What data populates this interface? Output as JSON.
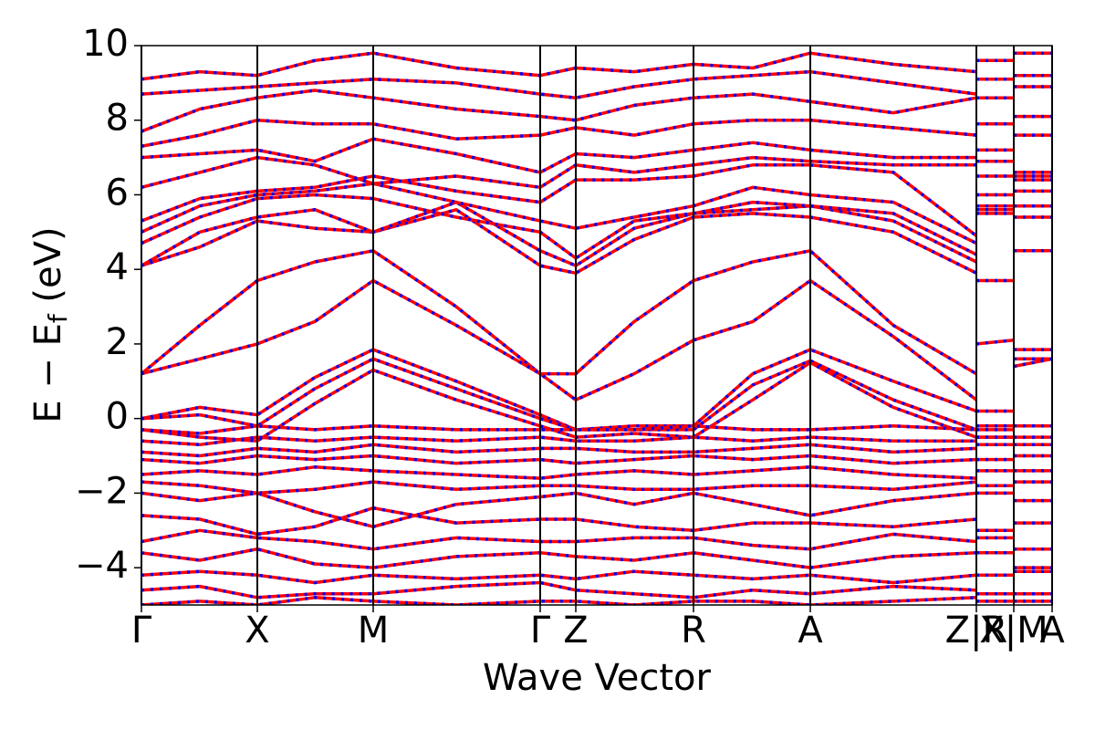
{
  "chart_data": {
    "type": "line",
    "xlabel": "Wave Vector",
    "ylabel": [
      "E − E",
      "f",
      " (eV)"
    ],
    "line_color": "#ff0000",
    "dash_color": "#0000ff",
    "xlim": [
      0,
      9.98
    ],
    "ylim": [
      -5,
      10
    ],
    "yticks": [
      {
        "value": -4,
        "label": "−4"
      },
      {
        "value": -2,
        "label": "−2"
      },
      0,
      2,
      4,
      6,
      8,
      10
    ],
    "xticks": [
      {
        "value": 0,
        "label": "Γ"
      },
      {
        "value": 1.27,
        "label": "X"
      },
      {
        "value": 2.54,
        "label": "M"
      },
      {
        "value": 4.37,
        "label": "Γ"
      },
      {
        "value": 4.76,
        "label": "Z"
      },
      {
        "value": 6.05,
        "label": "R"
      },
      {
        "value": 7.33,
        "label": "A"
      },
      {
        "value": 9.15,
        "label": "Z|R"
      },
      {
        "value": 9.56,
        "label": "X|M"
      },
      {
        "value": 9.98,
        "label": "A"
      }
    ],
    "x": [
      0,
      0.64,
      1.27,
      1.9,
      2.54,
      3.45,
      4.37,
      4.76,
      5.4,
      6.05,
      6.7,
      7.33,
      8.24,
      9.15,
      9.15,
      9.15,
      9.56,
      9.56,
      9.56,
      9.98
    ],
    "series": [
      {
        "values": [
          4.1,
          4.6,
          5.3,
          5.1,
          5.0,
          5.6,
          4.1,
          3.9,
          4.8,
          5.4,
          5.5,
          5.4,
          5.0,
          3.9,
          null,
          5.6,
          5.6,
          null,
          5.4,
          5.4
        ]
      },
      {
        "values": [
          4.1,
          5.0,
          5.4,
          5.6,
          5.0,
          5.8,
          4.5,
          4.1,
          5.1,
          5.5,
          5.6,
          5.7,
          5.3,
          4.2,
          null,
          5.5,
          5.5,
          null,
          5.7,
          5.7
        ]
      },
      {
        "values": [
          4.7,
          5.4,
          5.9,
          6.0,
          5.9,
          5.4,
          5.0,
          4.3,
          5.3,
          5.5,
          5.8,
          5.7,
          5.5,
          4.4,
          null,
          5.7,
          5.7,
          null,
          6.1,
          6.1
        ]
      },
      {
        "values": [
          5.0,
          5.7,
          6.0,
          6.1,
          6.3,
          5.8,
          5.3,
          5.1,
          5.4,
          5.7,
          6.2,
          6.0,
          5.8,
          4.7,
          null,
          6.0,
          6.0,
          null,
          6.4,
          6.4
        ]
      },
      {
        "values": [
          5.3,
          5.9,
          6.1,
          6.2,
          6.5,
          6.1,
          5.8,
          6.4,
          6.4,
          6.5,
          6.8,
          6.8,
          6.6,
          4.9,
          null,
          6.5,
          6.5,
          null,
          6.6,
          6.6
        ]
      },
      {
        "values": [
          6.2,
          6.6,
          7.0,
          6.8,
          6.3,
          6.5,
          6.2,
          6.8,
          6.6,
          6.8,
          7.0,
          6.9,
          6.8,
          6.8,
          null,
          6.9,
          6.9,
          null,
          6.5,
          6.5
        ]
      },
      {
        "values": [
          7.0,
          7.1,
          7.2,
          6.9,
          7.5,
          7.1,
          6.6,
          7.1,
          7.0,
          7.2,
          7.4,
          7.2,
          7.0,
          7.0,
          null,
          7.2,
          7.2,
          null,
          7.6,
          7.6
        ]
      },
      {
        "values": [
          7.3,
          7.6,
          8.0,
          7.9,
          7.9,
          7.5,
          7.6,
          7.8,
          7.6,
          7.9,
          8.0,
          8.0,
          7.8,
          7.6,
          null,
          7.9,
          7.9,
          null,
          8.1,
          8.1
        ]
      },
      {
        "values": [
          7.7,
          8.3,
          8.6,
          8.8,
          8.6,
          8.3,
          8.1,
          8.0,
          8.4,
          8.6,
          8.7,
          8.5,
          8.2,
          8.6,
          null,
          8.6,
          8.6,
          null,
          8.9,
          8.9
        ]
      },
      {
        "values": [
          8.7,
          8.8,
          8.9,
          9.0,
          9.1,
          9.0,
          8.7,
          8.6,
          8.9,
          9.1,
          9.2,
          9.3,
          9.0,
          8.7,
          null,
          9.1,
          9.1,
          null,
          9.2,
          9.2
        ]
      },
      {
        "values": [
          9.1,
          9.3,
          9.2,
          9.6,
          9.8,
          9.4,
          9.2,
          9.4,
          9.3,
          9.5,
          9.4,
          9.8,
          9.5,
          9.3,
          null,
          9.6,
          9.6,
          null,
          9.8,
          9.8
        ]
      },
      {
        "values": [
          1.2,
          2.5,
          3.7,
          4.2,
          4.5,
          3.0,
          1.2,
          1.2,
          2.6,
          3.7,
          4.2,
          4.5,
          2.5,
          1.2,
          null,
          3.7,
          3.7,
          null,
          4.5,
          4.5
        ]
      },
      {
        "values": [
          1.2,
          1.6,
          2.0,
          2.6,
          3.7,
          2.5,
          1.2,
          0.5,
          1.2,
          2.1,
          2.6,
          3.7,
          2.2,
          0.5,
          null,
          2.0,
          2.1,
          null,
          1.6,
          1.6
        ]
      },
      {
        "values": [
          0.0,
          0.3,
          0.1,
          1.1,
          1.85,
          1.0,
          0.1,
          -0.3,
          -0.2,
          -0.2,
          1.2,
          1.85,
          1.0,
          0.2,
          null,
          0.2,
          0.2,
          null,
          1.85,
          1.85
        ]
      },
      {
        "values": [
          0.0,
          0.1,
          -0.2,
          0.8,
          1.6,
          0.8,
          0.0,
          -0.3,
          -0.3,
          -0.3,
          0.9,
          1.55,
          0.5,
          -0.3,
          null,
          -0.2,
          -0.2,
          null,
          1.4,
          1.6
        ]
      },
      {
        "values": [
          -0.3,
          -0.5,
          -0.6,
          0.4,
          1.3,
          0.5,
          -0.2,
          -0.5,
          -0.4,
          -0.5,
          0.5,
          1.5,
          0.3,
          -0.5,
          null,
          -0.5,
          -0.5,
          null,
          -0.2,
          -0.2
        ]
      },
      {
        "values": [
          -0.3,
          -0.4,
          -0.2,
          -0.3,
          -0.2,
          -0.3,
          -0.3,
          -0.3,
          -0.3,
          -0.2,
          -0.3,
          -0.3,
          -0.2,
          -0.3,
          null,
          -0.3,
          -0.3,
          null,
          -0.2,
          -0.2
        ]
      },
      {
        "values": [
          -0.6,
          -0.7,
          -0.5,
          -0.6,
          -0.5,
          -0.6,
          -0.5,
          -0.6,
          -0.6,
          -0.5,
          -0.6,
          -0.5,
          -0.6,
          -0.6,
          null,
          -0.5,
          -0.5,
          null,
          -0.5,
          -0.5
        ]
      },
      {
        "values": [
          -0.9,
          -1.0,
          -0.8,
          -0.9,
          -0.7,
          -0.9,
          -0.8,
          -0.8,
          -0.9,
          -0.9,
          -0.8,
          -0.7,
          -0.9,
          -0.8,
          null,
          -0.7,
          -0.7,
          null,
          -0.7,
          -0.7
        ]
      },
      {
        "values": [
          -1.1,
          -1.2,
          -1.0,
          -1.1,
          -1.0,
          -1.2,
          -1.1,
          -1.2,
          -1.1,
          -1.0,
          -1.1,
          -1.0,
          -1.2,
          -1.1,
          null,
          -1.1,
          -1.1,
          null,
          -1.0,
          -1.0
        ]
      },
      {
        "values": [
          -1.5,
          -1.4,
          -1.5,
          -1.3,
          -1.4,
          -1.5,
          -1.6,
          -1.5,
          -1.4,
          -1.5,
          -1.4,
          -1.3,
          -1.5,
          -1.6,
          null,
          -1.4,
          -1.4,
          null,
          -1.4,
          -1.4
        ]
      },
      {
        "values": [
          -1.7,
          -1.8,
          -2.0,
          -1.9,
          -1.7,
          -1.9,
          -1.8,
          -1.8,
          -1.9,
          -1.9,
          -1.8,
          -1.8,
          -1.9,
          -1.7,
          null,
          -1.8,
          -1.8,
          null,
          -1.7,
          -1.7
        ]
      },
      {
        "values": [
          -2.0,
          -2.2,
          -2.0,
          -2.5,
          -2.9,
          -2.3,
          -2.1,
          -2.0,
          -2.3,
          -2.0,
          -2.3,
          -2.6,
          -2.2,
          -2.0,
          null,
          -2.0,
          -2.0,
          null,
          -2.2,
          -2.2
        ]
      },
      {
        "values": [
          -2.6,
          -2.7,
          -3.1,
          -2.9,
          -2.4,
          -2.8,
          -2.7,
          -2.7,
          -2.9,
          -3.0,
          -2.8,
          -2.8,
          -2.9,
          -2.7,
          null,
          -3.0,
          -3.0,
          null,
          -2.8,
          -2.8
        ]
      },
      {
        "values": [
          -3.3,
          -3.0,
          -3.2,
          -3.3,
          -3.5,
          -3.2,
          -3.3,
          -3.3,
          -3.2,
          -3.2,
          -3.4,
          -3.5,
          -3.1,
          -3.3,
          null,
          -3.2,
          -3.2,
          null,
          -3.5,
          -3.5
        ]
      },
      {
        "values": [
          -3.6,
          -3.8,
          -3.5,
          -3.9,
          -4.0,
          -3.7,
          -3.6,
          -3.7,
          -3.8,
          -3.6,
          -3.8,
          -4.0,
          -3.7,
          -3.6,
          null,
          -3.6,
          -3.6,
          null,
          -4.0,
          -4.0
        ]
      },
      {
        "values": [
          -4.2,
          -4.1,
          -4.2,
          -4.4,
          -4.2,
          -4.3,
          -4.2,
          -4.3,
          -4.1,
          -4.2,
          -4.3,
          -4.2,
          -4.4,
          -4.2,
          null,
          -4.2,
          -4.2,
          null,
          -4.1,
          -4.1
        ]
      },
      {
        "values": [
          -4.6,
          -4.5,
          -4.8,
          -4.7,
          -4.7,
          -4.5,
          -4.4,
          -4.6,
          -4.7,
          -4.8,
          -4.6,
          -4.7,
          -4.5,
          -4.6,
          null,
          -4.7,
          -4.7,
          null,
          -4.7,
          -4.7
        ]
      },
      {
        "values": [
          -5.0,
          -4.9,
          -5.0,
          -4.8,
          -4.9,
          -5.0,
          -4.9,
          -4.9,
          -5.0,
          -4.9,
          -4.9,
          -5.0,
          -4.9,
          -4.8,
          null,
          -4.9,
          -4.9,
          null,
          -4.9,
          -4.9
        ]
      }
    ]
  }
}
